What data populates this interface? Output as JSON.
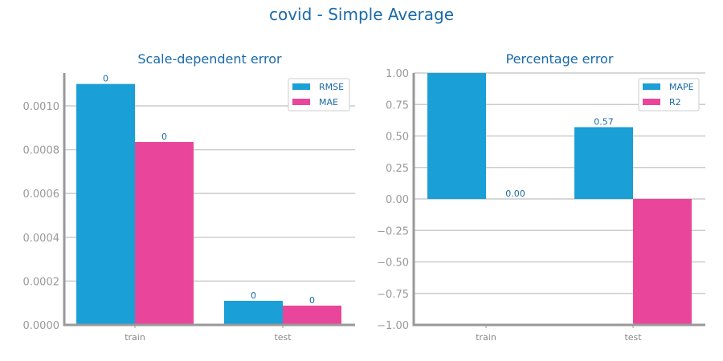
{
  "title": "covid - Simple Average",
  "chart_data": [
    {
      "type": "bar",
      "title": "Scale-dependent error",
      "categories": [
        "train",
        "test"
      ],
      "series": [
        {
          "name": "RMSE",
          "values": [
            0.0011,
            0.00011
          ],
          "labels": [
            "0",
            "0"
          ]
        },
        {
          "name": "MAE",
          "values": [
            0.000835,
            8.8e-05
          ],
          "labels": [
            "0",
            "0"
          ]
        }
      ],
      "ylim": [
        0,
        0.00115
      ],
      "yticks": [
        0,
        0.0002,
        0.0004,
        0.0006,
        0.0008,
        0.001
      ],
      "ytick_labels": [
        "0.0000",
        "0.0002",
        "0.0004",
        "0.0006",
        "0.0008",
        "0.0010"
      ],
      "grid": true,
      "legend": "top-right",
      "colors": [
        "#1a9fd6",
        "#e9469b"
      ]
    },
    {
      "type": "bar",
      "title": "Percentage error",
      "categories": [
        "train",
        "test"
      ],
      "series": [
        {
          "name": "MAPE",
          "values": [
            1.0,
            0.57
          ],
          "labels": [
            "",
            "0.57"
          ]
        },
        {
          "name": "R2",
          "values": [
            0.0,
            -1.0
          ],
          "labels": [
            "0.00",
            ""
          ]
        }
      ],
      "ylim": [
        -1.0,
        1.0
      ],
      "yticks": [
        -1.0,
        -0.75,
        -0.5,
        -0.25,
        0.0,
        0.25,
        0.5,
        0.75,
        1.0
      ],
      "ytick_labels": [
        "−1.00",
        "−0.75",
        "−0.50",
        "−0.25",
        "0.00",
        "0.25",
        "0.50",
        "0.75",
        "1.00"
      ],
      "grid": true,
      "legend": "top-right",
      "colors": [
        "#1a9fd6",
        "#e9469b"
      ]
    }
  ]
}
